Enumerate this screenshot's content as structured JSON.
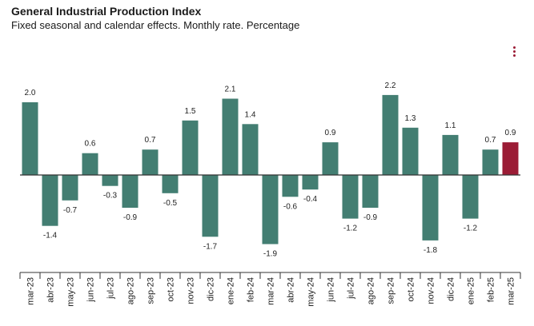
{
  "colors": {
    "bar": "#437e72",
    "highlight": "#9b1c35",
    "axis": "#333333",
    "menu": "#9b1c35"
  },
  "menu_icon": "vertical-dots-icon",
  "chart_data": {
    "type": "bar",
    "title": "General Industrial Production Index",
    "subtitle": "Fixed seasonal and calendar effects. Monthly rate. Percentage",
    "xlabel": "",
    "ylabel": "",
    "ylim": [
      -2.2,
      2.5
    ],
    "categories": [
      "mar-23",
      "abr-23",
      "may-23",
      "jun-23",
      "jul-23",
      "ago-23",
      "sep-23",
      "oct-23",
      "nov-23",
      "dic-23",
      "ene-24",
      "feb-24",
      "mar-24",
      "abr-24",
      "may-24",
      "jun-24",
      "jul-24",
      "ago-24",
      "sep-24",
      "oct-24",
      "nov-24",
      "dic-24",
      "ene-25",
      "feb-25",
      "mar-25"
    ],
    "values": [
      2.0,
      -1.4,
      -0.7,
      0.6,
      -0.3,
      -0.9,
      0.7,
      -0.5,
      1.5,
      -1.7,
      2.1,
      1.4,
      -1.9,
      -0.6,
      -0.4,
      0.9,
      -1.2,
      -0.9,
      2.2,
      1.3,
      -1.8,
      1.1,
      -1.2,
      0.7,
      0.9
    ],
    "highlight_index": 24
  }
}
